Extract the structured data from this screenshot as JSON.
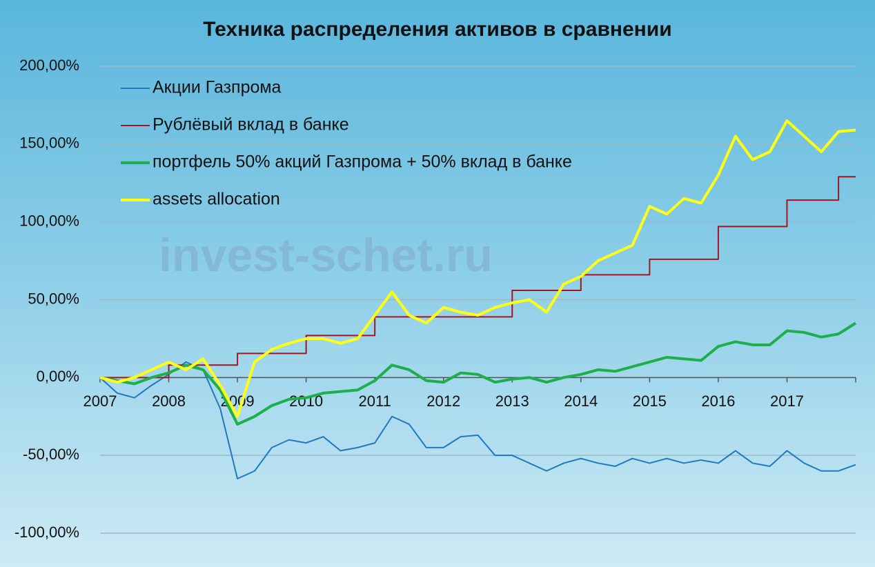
{
  "chart_data": {
    "type": "line",
    "title": "Техника распределения активов в сравнении",
    "watermark": "invest-schet.ru",
    "x": [
      2007,
      2007.25,
      2007.5,
      2007.75,
      2008,
      2008.25,
      2008.5,
      2008.75,
      2009,
      2009.25,
      2009.5,
      2009.75,
      2010,
      2010.25,
      2010.5,
      2010.75,
      2011,
      2011.25,
      2011.5,
      2011.75,
      2012,
      2012.25,
      2012.5,
      2012.75,
      2013,
      2013.25,
      2013.5,
      2013.75,
      2014,
      2014.25,
      2014.5,
      2014.75,
      2015,
      2015.25,
      2015.5,
      2015.75,
      2016,
      2016.25,
      2016.5,
      2016.75,
      2017,
      2017.25,
      2017.5,
      2017.75,
      2018
    ],
    "series": [
      {
        "name": "Акции Газпрома",
        "color": "#1f78c1",
        "width": 2,
        "values": [
          0,
          -10,
          -13,
          -5,
          2,
          10,
          5,
          -20,
          -65,
          -60,
          -45,
          -40,
          -42,
          -38,
          -47,
          -45,
          -42,
          -25,
          -30,
          -45,
          -45,
          -38,
          -37,
          -50,
          -50,
          -55,
          -60,
          -55,
          -52,
          -55,
          -57,
          -52,
          -55,
          -52,
          -55,
          -53,
          -55,
          -47,
          -55,
          -57,
          -47,
          -55,
          -60,
          -60,
          -56
        ]
      },
      {
        "name": "Рублёвый вклад в банке",
        "color": "#a5141f",
        "width": 2,
        "step": true,
        "values": [
          0,
          0,
          0,
          0,
          8,
          8,
          8,
          8,
          15.5,
          15.5,
          15.5,
          15.5,
          27,
          27,
          27,
          27,
          39,
          39,
          39,
          39,
          39,
          39,
          39,
          39,
          56,
          56,
          56,
          56,
          66,
          66,
          66,
          66,
          76,
          76,
          76,
          76,
          97,
          97,
          97,
          97,
          114,
          114,
          114,
          129,
          129
        ]
      },
      {
        "name": "портфель 50% акций Газпрома + 50% вклад в банке",
        "color": "#1fae4c",
        "width": 4,
        "values": [
          0,
          -2,
          -4,
          0,
          3,
          8,
          5,
          -8,
          -30,
          -25,
          -18,
          -14,
          -13,
          -10,
          -9,
          -8,
          -2,
          8,
          5,
          -2,
          -3,
          3,
          2,
          -3,
          -1,
          0,
          -3,
          0,
          2,
          5,
          4,
          7,
          10,
          13,
          12,
          11,
          20,
          23,
          21,
          21,
          30,
          29,
          26,
          28,
          35
        ]
      },
      {
        "name": "assets allocation",
        "color": "#ffff14",
        "width": 4,
        "values": [
          0,
          -3,
          0,
          5,
          10,
          5,
          12,
          -5,
          -25,
          10,
          18,
          22,
          25,
          25,
          22,
          25,
          40,
          55,
          40,
          35,
          45,
          42,
          40,
          45,
          48,
          50,
          42,
          60,
          65,
          75,
          80,
          85,
          110,
          105,
          115,
          112,
          130,
          155,
          140,
          145,
          165,
          155,
          145,
          158,
          159
        ]
      }
    ],
    "xlim": [
      2007,
      2018
    ],
    "xticks": [
      2007,
      2008,
      2009,
      2010,
      2011,
      2012,
      2013,
      2014,
      2015,
      2016,
      2017
    ],
    "ylim": [
      -100,
      200
    ],
    "yticks": [
      {
        "value": -100,
        "label": "-100,00%"
      },
      {
        "value": -50,
        "label": "-50,00%"
      },
      {
        "value": 0,
        "label": "0,00%"
      },
      {
        "value": 50,
        "label": "50,00%"
      },
      {
        "value": 100,
        "label": "100,00%"
      },
      {
        "value": 150,
        "label": "150,00%"
      },
      {
        "value": 200,
        "label": "200,00%"
      }
    ],
    "grid": true,
    "legend": "upper-left"
  }
}
